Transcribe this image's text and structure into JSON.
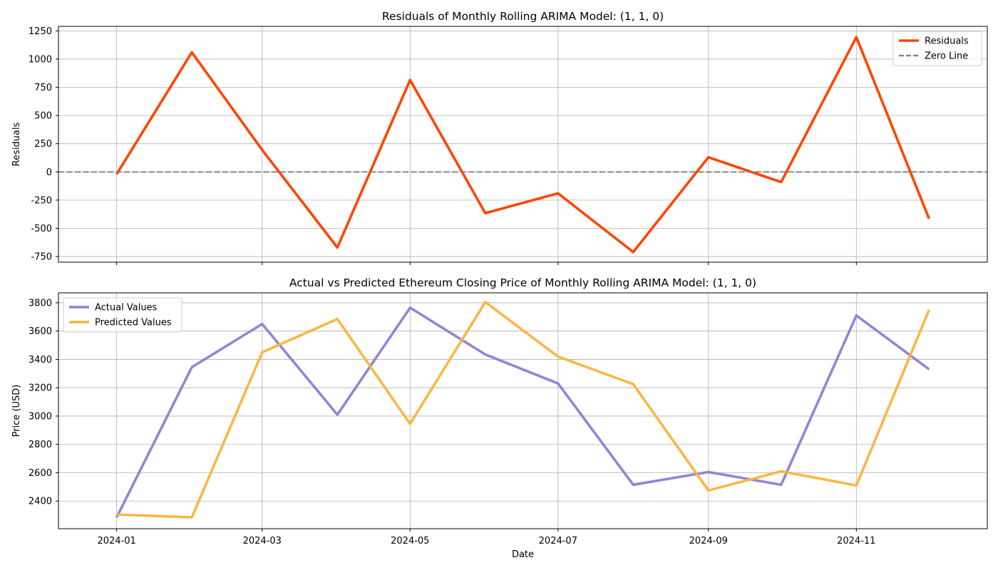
{
  "chart_data": [
    {
      "type": "line",
      "title": "Residuals of Monthly Rolling ARIMA Model: (1, 1, 0)",
      "xlabel": "",
      "ylabel": "Residuals",
      "x": [
        "2024-01-01",
        "2024-02-01",
        "2024-03-01",
        "2024-04-01",
        "2024-05-01",
        "2024-06-01",
        "2024-07-01",
        "2024-08-01",
        "2024-09-01",
        "2024-10-01",
        "2024-11-01",
        "2024-12-01"
      ],
      "xticks": [
        "2024-01",
        "2024-03",
        "2024-05",
        "2024-07",
        "2024-09",
        "2024-11"
      ],
      "xlim": [
        "2023-12-08",
        "2024-12-25"
      ],
      "ylim": [
        -800,
        1290
      ],
      "yticks": [
        -750,
        -500,
        -250,
        0,
        250,
        500,
        750,
        1000,
        1250
      ],
      "grid": true,
      "legend": "upper-right",
      "series": [
        {
          "name": "Residuals",
          "color": "#ff4500",
          "dash": "solid",
          "values": [
            -20,
            1060,
            195,
            -670,
            815,
            -365,
            -190,
            -710,
            130,
            -90,
            1195,
            -415
          ]
        },
        {
          "name": "Zero Line",
          "color": "#808080",
          "dash": "dashed",
          "constant": 0
        }
      ]
    },
    {
      "type": "line",
      "title": "Actual vs Predicted Ethereum Closing Price of Monthly Rolling ARIMA Model: (1, 1, 0)",
      "xlabel": "Date",
      "ylabel": "Price (USD)",
      "x": [
        "2024-01-01",
        "2024-02-01",
        "2024-03-01",
        "2024-04-01",
        "2024-05-01",
        "2024-06-01",
        "2024-07-01",
        "2024-08-01",
        "2024-09-01",
        "2024-10-01",
        "2024-11-01",
        "2024-12-01"
      ],
      "xticks": [
        "2024-01",
        "2024-03",
        "2024-05",
        "2024-07",
        "2024-09",
        "2024-11"
      ],
      "xlim": [
        "2023-12-08",
        "2024-12-25"
      ],
      "ylim": [
        2205,
        3870
      ],
      "yticks": [
        2400,
        2600,
        2800,
        3000,
        3200,
        3400,
        3600,
        3800
      ],
      "grid": true,
      "legend": "upper-left",
      "series": [
        {
          "name": "Actual Values",
          "color": "#8a7fd6",
          "dash": "solid",
          "values": [
            2285,
            3345,
            3650,
            3010,
            3765,
            3435,
            3230,
            2515,
            2605,
            2515,
            3710,
            3330
          ]
        },
        {
          "name": "Predicted Values",
          "color": "#fbb33a",
          "dash": "solid",
          "values": [
            2305,
            2285,
            3450,
            3685,
            2945,
            3805,
            3420,
            3225,
            2475,
            2610,
            2510,
            3750
          ]
        }
      ]
    }
  ]
}
